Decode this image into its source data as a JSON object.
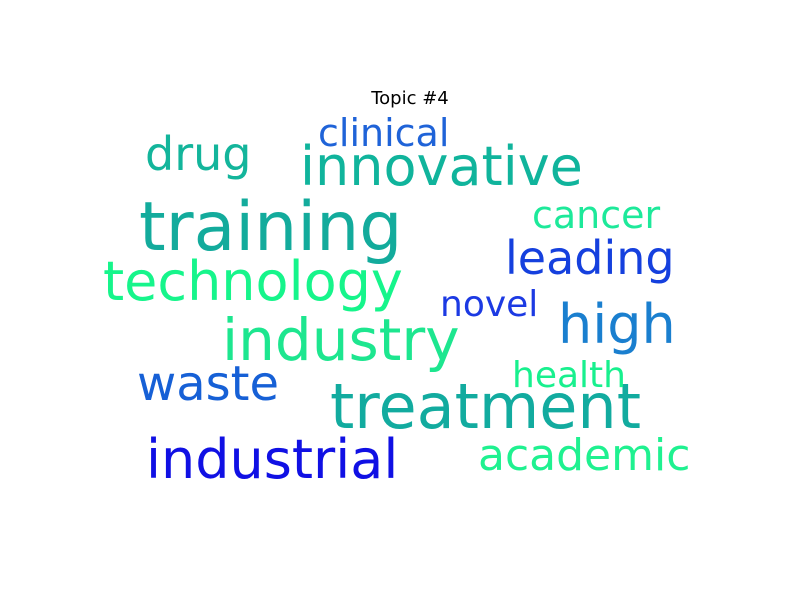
{
  "chart_data": {
    "type": "wordcloud",
    "title": "Topic #4",
    "words": [
      {
        "text": "training",
        "color": "#13ab9c"
      },
      {
        "text": "innovative",
        "color": "#10b49c"
      },
      {
        "text": "treatment",
        "color": "#12ab9f"
      },
      {
        "text": "technology",
        "color": "#16f58b"
      },
      {
        "text": "industry",
        "color": "#1de68f"
      },
      {
        "text": "industrial",
        "color": "#1010e4"
      },
      {
        "text": "high",
        "color": "#1a7fcf"
      },
      {
        "text": "waste",
        "color": "#1660d6"
      },
      {
        "text": "academic",
        "color": "#1ff190"
      },
      {
        "text": "leading",
        "color": "#1540de"
      },
      {
        "text": "drug",
        "color": "#13b59b"
      },
      {
        "text": "cancer",
        "color": "#1de99a"
      },
      {
        "text": "clinical",
        "color": "#1f63d8"
      },
      {
        "text": "novel",
        "color": "#1c3ae3"
      },
      {
        "text": "health",
        "color": "#18f08e"
      }
    ]
  }
}
